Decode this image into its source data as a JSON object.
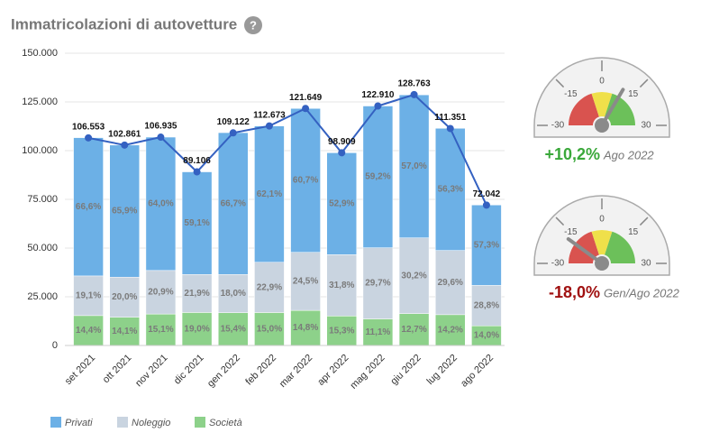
{
  "chart_data": {
    "type": "stacked-bar-line",
    "title": "Immatricolazioni di autovetture",
    "help_icon": "?",
    "categories": [
      "set 2021",
      "ott 2021",
      "nov 2021",
      "dic 2021",
      "gen 2022",
      "feb 2022",
      "mar 2022",
      "apr 2022",
      "mag 2022",
      "giu 2022",
      "lug 2022",
      "ago 2022"
    ],
    "series": [
      {
        "name": "Privati",
        "color": "#6cb0e6",
        "values": [
          66.6,
          65.9,
          64.0,
          59.1,
          66.7,
          62.1,
          60.7,
          52.9,
          59.2,
          57.0,
          56.3,
          57.3
        ],
        "value_labels": [
          "66,6%",
          "65,9%",
          "64,0%",
          "59,1%",
          "66,7%",
          "62,1%",
          "60,7%",
          "52,9%",
          "59,2%",
          "57,0%",
          "56,3%",
          "57,3%"
        ]
      },
      {
        "name": "Noleggio",
        "color": "#c9d4e0",
        "values": [
          19.1,
          20.0,
          20.9,
          21.9,
          18.0,
          22.9,
          24.5,
          31.8,
          29.7,
          30.2,
          29.6,
          28.8
        ],
        "value_labels": [
          "19,1%",
          "20,0%",
          "20,9%",
          "21,9%",
          "18,0%",
          "22,9%",
          "24,5%",
          "31,8%",
          "29,7%",
          "30,2%",
          "29,6%",
          "28,8%"
        ]
      },
      {
        "name": "Società",
        "color": "#8dd18a",
        "values": [
          14.4,
          14.1,
          15.1,
          19.0,
          15.4,
          15.0,
          14.8,
          15.3,
          11.1,
          12.7,
          14.2,
          14.0
        ],
        "value_labels": [
          "14,4%",
          "14,1%",
          "15,1%",
          "19,0%",
          "15,4%",
          "15,0%",
          "14,8%",
          "15,3%",
          "11,1%",
          "12,7%",
          "14,2%",
          "14,0%"
        ]
      }
    ],
    "totals": {
      "color": "#3461c1",
      "values": [
        106553,
        102861,
        106935,
        89106,
        109122,
        112673,
        121649,
        98909,
        122910,
        128763,
        111351,
        72042
      ],
      "value_labels": [
        "106.553",
        "102.861",
        "106.935",
        "89.106",
        "109.122",
        "112.673",
        "121.649",
        "98.909",
        "122.910",
        "128.763",
        "111.351",
        "72.042"
      ]
    },
    "ylim": [
      0,
      150000
    ],
    "yticks": [
      0,
      {
        "value": 25000,
        "label": "25.000"
      },
      {
        "value": 50000,
        "label": "50.000"
      },
      {
        "value": 75000,
        "label": "75.000"
      },
      {
        "value": 100000,
        "label": "100.000"
      },
      {
        "value": 125000,
        "label": "125.000"
      },
      {
        "value": 150000,
        "label": "150.000"
      }
    ],
    "gauges": [
      {
        "type": "gauge",
        "value": 10.2,
        "value_label": "+10,2%",
        "period": "Ago 2022",
        "color": "#3aa83a",
        "range": [
          -30,
          30
        ],
        "ticks": [
          -30,
          -15,
          0,
          15,
          30
        ]
      },
      {
        "type": "gauge",
        "value": -18.0,
        "value_label": "-18,0%",
        "period": "Gen/Ago 2022",
        "color": "#a01010",
        "range": [
          -30,
          30
        ],
        "ticks": [
          -30,
          -15,
          0,
          15,
          30
        ]
      }
    ]
  }
}
